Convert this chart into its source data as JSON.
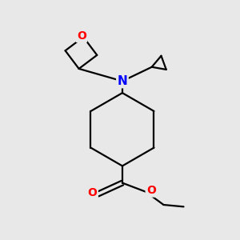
{
  "bg_color": "#e8e8e8",
  "bond_color": "#000000",
  "N_color": "#0000ff",
  "O_color": "#ff0000",
  "line_width": 1.6,
  "figsize": [
    3.0,
    3.0
  ],
  "dpi": 100,
  "xlim": [
    0,
    10
  ],
  "ylim": [
    0,
    10
  ]
}
